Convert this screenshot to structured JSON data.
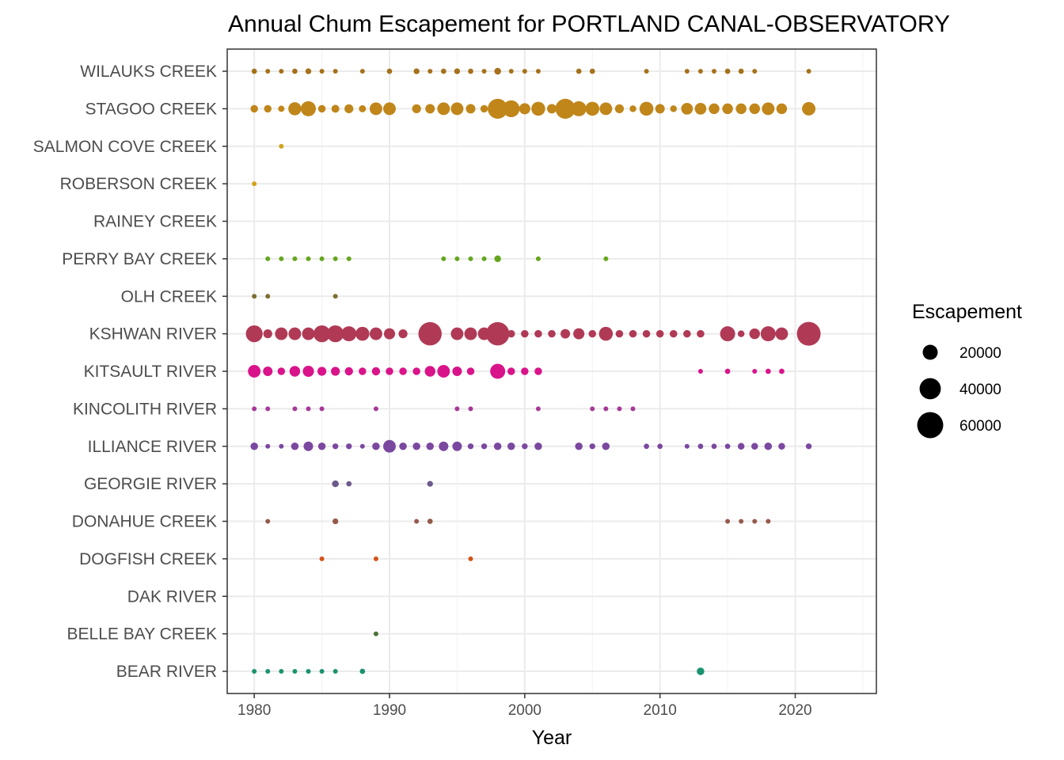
{
  "chart_data": {
    "type": "scatter",
    "title": "Annual Chum Escapement for PORTLAND CANAL-OBSERVATORY",
    "xlabel": "Year",
    "ylabel": "",
    "xlim": [
      1978,
      2026
    ],
    "x_ticks": [
      1980,
      1990,
      2000,
      2010,
      2020
    ],
    "legend": {
      "title": "Escapement",
      "position": "right",
      "entries": [
        {
          "label": "20000",
          "value": 20000
        },
        {
          "label": "40000",
          "value": 40000
        },
        {
          "label": "60000",
          "value": 60000
        }
      ]
    },
    "size_scale": {
      "min_value": 0,
      "max_value": 80000,
      "min_radius": 3,
      "max_radius": 19
    },
    "grid": true,
    "categories": [
      "WILAUKS CREEK",
      "STAGOO CREEK",
      "SALMON COVE CREEK",
      "ROBERSON CREEK",
      "RAINEY CREEK",
      "PERRY BAY CREEK",
      "OLH CREEK",
      "KSHWAN RIVER",
      "KITSAULT RIVER",
      "KINCOLITH RIVER",
      "ILLIANCE RIVER",
      "GEORGIE RIVER",
      "DONAHUE CREEK",
      "DOGFISH CREEK",
      "DAK RIVER",
      "BELLE BAY CREEK",
      "BEAR RIVER"
    ],
    "series": [
      {
        "name": "WILAUKS CREEK",
        "color": "#a6711b",
        "points": [
          [
            1980,
            2500
          ],
          [
            1981,
            1500
          ],
          [
            1982,
            1500
          ],
          [
            1983,
            2500
          ],
          [
            1984,
            3000
          ],
          [
            1985,
            2000
          ],
          [
            1986,
            1500
          ],
          [
            1988,
            2000
          ],
          [
            1990,
            2500
          ],
          [
            1992,
            3000
          ],
          [
            1993,
            2000
          ],
          [
            1994,
            2500
          ],
          [
            1995,
            3000
          ],
          [
            1996,
            2500
          ],
          [
            1997,
            1500
          ],
          [
            1998,
            4000
          ],
          [
            1999,
            2000
          ],
          [
            2000,
            2000
          ],
          [
            2001,
            2000
          ],
          [
            2004,
            2500
          ],
          [
            2005,
            2500
          ],
          [
            2009,
            1500
          ],
          [
            2012,
            1500
          ],
          [
            2013,
            2000
          ],
          [
            2014,
            1500
          ],
          [
            2015,
            2500
          ],
          [
            2016,
            2500
          ],
          [
            2017,
            1500
          ],
          [
            2021,
            1500
          ]
        ]
      },
      {
        "name": "STAGOO CREEK",
        "color": "#c0861a",
        "points": [
          [
            1980,
            5000
          ],
          [
            1981,
            5000
          ],
          [
            1982,
            3500
          ],
          [
            1983,
            15000
          ],
          [
            1984,
            20000
          ],
          [
            1985,
            5000
          ],
          [
            1986,
            5500
          ],
          [
            1987,
            7000
          ],
          [
            1988,
            4500
          ],
          [
            1989,
            14000
          ],
          [
            1990,
            14000
          ],
          [
            1992,
            7000
          ],
          [
            1993,
            8000
          ],
          [
            1994,
            14000
          ],
          [
            1995,
            14000
          ],
          [
            1996,
            8000
          ],
          [
            1997,
            5000
          ],
          [
            1998,
            35000
          ],
          [
            1999,
            25000
          ],
          [
            2000,
            11000
          ],
          [
            2001,
            17000
          ],
          [
            2002,
            8000
          ],
          [
            2003,
            35000
          ],
          [
            2004,
            20000
          ],
          [
            2005,
            17000
          ],
          [
            2006,
            14000
          ],
          [
            2007,
            7000
          ],
          [
            2008,
            4000
          ],
          [
            2009,
            17000
          ],
          [
            2010,
            8000
          ],
          [
            2011,
            4000
          ],
          [
            2012,
            12000
          ],
          [
            2013,
            12000
          ],
          [
            2014,
            10000
          ],
          [
            2015,
            10000
          ],
          [
            2016,
            10000
          ],
          [
            2017,
            10000
          ],
          [
            2018,
            14000
          ],
          [
            2019,
            10000
          ],
          [
            2021,
            16000
          ]
        ]
      },
      {
        "name": "SALMON COVE CREEK",
        "color": "#d2a31c",
        "points": [
          [
            1982,
            1000
          ]
        ]
      },
      {
        "name": "ROBERSON CREEK",
        "color": "#d2a31c",
        "points": [
          [
            1980,
            1000
          ]
        ]
      },
      {
        "name": "RAINEY CREEK",
        "color": "#9aa31c",
        "points": []
      },
      {
        "name": "PERRY BAY CREEK",
        "color": "#66a61e",
        "points": [
          [
            1981,
            1500
          ],
          [
            1982,
            1500
          ],
          [
            1983,
            1500
          ],
          [
            1984,
            1500
          ],
          [
            1985,
            1500
          ],
          [
            1986,
            1500
          ],
          [
            1987,
            1000
          ],
          [
            1994,
            1000
          ],
          [
            1995,
            1500
          ],
          [
            1996,
            1500
          ],
          [
            1997,
            1500
          ],
          [
            1998,
            4000
          ],
          [
            2001,
            1500
          ],
          [
            2006,
            2000
          ]
        ]
      },
      {
        "name": "OLH CREEK",
        "color": "#7c6f32",
        "points": [
          [
            1980,
            1000
          ],
          [
            1981,
            1500
          ],
          [
            1986,
            2000
          ]
        ]
      },
      {
        "name": "KSHWAN RIVER",
        "color": "#b03a56",
        "points": [
          [
            1980,
            25000
          ],
          [
            1981,
            7000
          ],
          [
            1982,
            14000
          ],
          [
            1983,
            14000
          ],
          [
            1984,
            14000
          ],
          [
            1985,
            25000
          ],
          [
            1986,
            25000
          ],
          [
            1987,
            20000
          ],
          [
            1988,
            17000
          ],
          [
            1989,
            14000
          ],
          [
            1990,
            11000
          ],
          [
            1991,
            7000
          ],
          [
            1993,
            48000
          ],
          [
            1995,
            14000
          ],
          [
            1996,
            14000
          ],
          [
            1997,
            14000
          ],
          [
            1998,
            48000
          ],
          [
            1999,
            5000
          ],
          [
            2000,
            5000
          ],
          [
            2001,
            5000
          ],
          [
            2002,
            5000
          ],
          [
            2003,
            8000
          ],
          [
            2004,
            11000
          ],
          [
            2005,
            5000
          ],
          [
            2006,
            17000
          ],
          [
            2007,
            5000
          ],
          [
            2008,
            5000
          ],
          [
            2009,
            5000
          ],
          [
            2010,
            5000
          ],
          [
            2011,
            5000
          ],
          [
            2012,
            5000
          ],
          [
            2013,
            5000
          ],
          [
            2015,
            20000
          ],
          [
            2016,
            4000
          ],
          [
            2017,
            10000
          ],
          [
            2018,
            20000
          ],
          [
            2019,
            14000
          ],
          [
            2021,
            50000
          ]
        ]
      },
      {
        "name": "KITSAULT RIVER",
        "color": "#d9138a",
        "points": [
          [
            1980,
            14000
          ],
          [
            1981,
            8000
          ],
          [
            1982,
            5000
          ],
          [
            1983,
            10000
          ],
          [
            1984,
            11000
          ],
          [
            1985,
            7000
          ],
          [
            1986,
            7000
          ],
          [
            1987,
            6000
          ],
          [
            1988,
            5000
          ],
          [
            1989,
            6000
          ],
          [
            1990,
            5000
          ],
          [
            1991,
            5000
          ],
          [
            1992,
            5000
          ],
          [
            1993,
            10000
          ],
          [
            1994,
            14000
          ],
          [
            1995,
            8000
          ],
          [
            1996,
            5000
          ],
          [
            1998,
            20000
          ],
          [
            1999,
            5000
          ],
          [
            2000,
            5000
          ],
          [
            2001,
            5000
          ],
          [
            2013,
            1500
          ],
          [
            2015,
            2500
          ],
          [
            2017,
            2000
          ],
          [
            2018,
            2500
          ],
          [
            2019,
            2500
          ]
        ]
      },
      {
        "name": "KINCOLITH RIVER",
        "color": "#a53a96",
        "points": [
          [
            1980,
            2000
          ],
          [
            1981,
            2000
          ],
          [
            1983,
            1500
          ],
          [
            1984,
            1500
          ],
          [
            1985,
            1500
          ],
          [
            1989,
            1500
          ],
          [
            1995,
            2000
          ],
          [
            1996,
            2000
          ],
          [
            2001,
            2000
          ],
          [
            2005,
            2000
          ],
          [
            2006,
            1500
          ],
          [
            2007,
            1500
          ],
          [
            2008,
            1500
          ]
        ]
      },
      {
        "name": "ILLIANCE RIVER",
        "color": "#7b48a0",
        "points": [
          [
            1980,
            5000
          ],
          [
            1981,
            2000
          ],
          [
            1982,
            2000
          ],
          [
            1983,
            5000
          ],
          [
            1984,
            8000
          ],
          [
            1985,
            5000
          ],
          [
            1986,
            3000
          ],
          [
            1987,
            3000
          ],
          [
            1988,
            2000
          ],
          [
            1989,
            5000
          ],
          [
            1990,
            14000
          ],
          [
            1991,
            5000
          ],
          [
            1992,
            5000
          ],
          [
            1993,
            5000
          ],
          [
            1994,
            8000
          ],
          [
            1995,
            8000
          ],
          [
            1996,
            3000
          ],
          [
            1997,
            3000
          ],
          [
            1998,
            5000
          ],
          [
            1999,
            5000
          ],
          [
            2000,
            3000
          ],
          [
            2001,
            5000
          ],
          [
            2004,
            5000
          ],
          [
            2005,
            3000
          ],
          [
            2006,
            5000
          ],
          [
            2009,
            2500
          ],
          [
            2010,
            2500
          ],
          [
            2012,
            2000
          ],
          [
            2013,
            2500
          ],
          [
            2014,
            2500
          ],
          [
            2015,
            2500
          ],
          [
            2016,
            4000
          ],
          [
            2017,
            4000
          ],
          [
            2018,
            5000
          ],
          [
            2019,
            4000
          ],
          [
            2021,
            3000
          ]
        ]
      },
      {
        "name": "GEORGIE RIVER",
        "color": "#6c5a8c",
        "points": [
          [
            1986,
            4000
          ],
          [
            1987,
            2500
          ],
          [
            1993,
            3000
          ]
        ]
      },
      {
        "name": "DONAHUE CREEK",
        "color": "#955a4c",
        "points": [
          [
            1981,
            1500
          ],
          [
            1986,
            3000
          ],
          [
            1992,
            1500
          ],
          [
            1993,
            2500
          ],
          [
            2015,
            2000
          ],
          [
            2016,
            2000
          ],
          [
            2017,
            1500
          ],
          [
            2018,
            1500
          ]
        ]
      },
      {
        "name": "DOGFISH CREEK",
        "color": "#d35418",
        "points": [
          [
            1985,
            2000
          ],
          [
            1989,
            2000
          ],
          [
            1996,
            1500
          ]
        ]
      },
      {
        "name": "DAK RIVER",
        "color": "#3f7a3a",
        "points": []
      },
      {
        "name": "BELLE BAY CREEK",
        "color": "#4b7236",
        "points": [
          [
            1989,
            1500
          ]
        ]
      },
      {
        "name": "BEAR RIVER",
        "color": "#1b9370",
        "points": [
          [
            1980,
            2000
          ],
          [
            1981,
            2000
          ],
          [
            1982,
            2000
          ],
          [
            1983,
            2000
          ],
          [
            1984,
            2000
          ],
          [
            1985,
            2000
          ],
          [
            1986,
            2000
          ],
          [
            1988,
            2500
          ],
          [
            2013,
            5000
          ]
        ]
      }
    ]
  }
}
